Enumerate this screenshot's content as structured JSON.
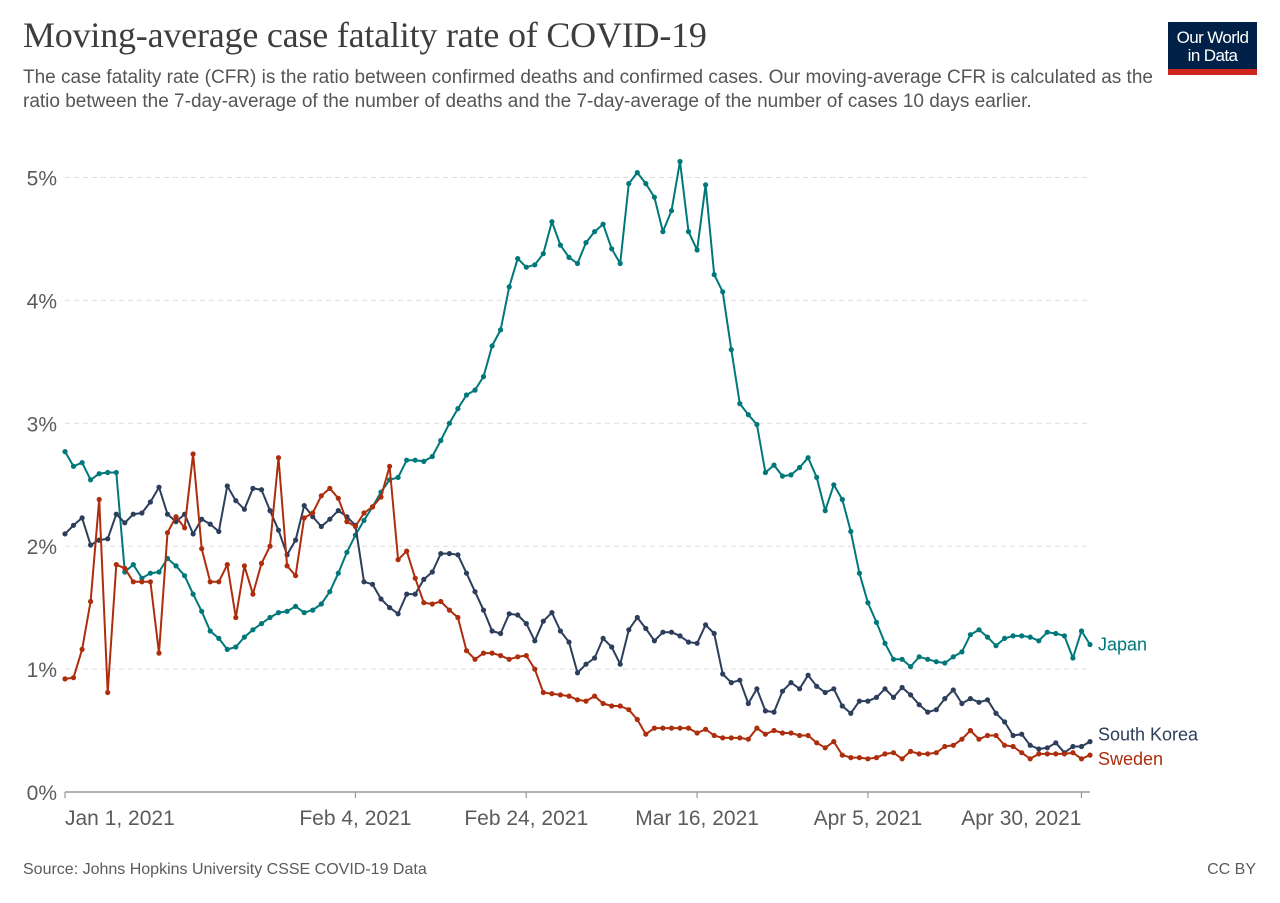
{
  "header": {
    "title": "Moving-average case fatality rate of COVID-19",
    "subtitle": "The case fatality rate (CFR) is the ratio between confirmed deaths and confirmed cases. Our moving-average CFR is calculated as the ratio between the 7-day-average of the number of deaths and the 7-day-average of the number of cases 10 days earlier.",
    "logo_line1": "Our World",
    "logo_line2": "in Data"
  },
  "footer": {
    "source": "Source: Johns Hopkins University CSSE COVID-19 Data",
    "license": "CC BY"
  },
  "colors": {
    "japan": "#00787a",
    "south_korea": "#2c3e5c",
    "sweden": "#ad2e0d",
    "grid": "#dddddd",
    "axis": "#999999",
    "logo_bg": "#002147",
    "logo_accent": "#ce261e"
  },
  "chart_data": {
    "type": "line",
    "title": "Moving-average case fatality rate of COVID-19",
    "xlabel": "",
    "ylabel": "",
    "x_start": "2021-01-01",
    "x_end": "2021-04-30",
    "x_step": "1 day",
    "x_ticks": [
      "Jan 1, 2021",
      "Feb 4, 2021",
      "Feb 24, 2021",
      "Mar 16, 2021",
      "Apr 5, 2021",
      "Apr 30, 2021"
    ],
    "x_tick_days": [
      0,
      34,
      54,
      74,
      94,
      119
    ],
    "y_ticks": [
      "0%",
      "1%",
      "2%",
      "3%",
      "4%",
      "5%"
    ],
    "y_tick_values": [
      0,
      1,
      2,
      3,
      4,
      5
    ],
    "ylim": [
      0,
      5.2
    ],
    "grid": "horizontal dashed",
    "legend": "inline-right",
    "series": [
      {
        "name": "Japan",
        "color_key": "japan",
        "values": [
          2.77,
          2.65,
          2.68,
          2.54,
          2.59,
          2.6,
          2.6,
          1.79,
          1.85,
          1.74,
          1.78,
          1.79,
          1.9,
          1.84,
          1.76,
          1.61,
          1.47,
          1.31,
          1.25,
          1.16,
          1.18,
          1.26,
          1.32,
          1.37,
          1.42,
          1.46,
          1.47,
          1.51,
          1.46,
          1.48,
          1.53,
          1.63,
          1.78,
          1.95,
          2.09,
          2.21,
          2.32,
          2.44,
          2.54,
          2.56,
          2.7,
          2.7,
          2.69,
          2.73,
          2.86,
          3.0,
          3.12,
          3.23,
          3.27,
          3.38,
          3.63,
          3.76,
          4.11,
          4.34,
          4.27,
          4.29,
          4.38,
          4.64,
          4.45,
          4.35,
          4.3,
          4.47,
          4.56,
          4.62,
          4.42,
          4.3,
          4.95,
          5.04,
          4.95,
          4.84,
          4.56,
          4.73,
          5.13,
          4.56,
          4.41,
          4.94,
          4.21,
          4.07,
          3.6,
          3.16,
          3.07,
          2.99,
          2.6,
          2.66,
          2.57,
          2.58,
          2.64,
          2.72,
          2.56,
          2.29,
          2.5,
          2.38,
          2.12,
          1.78,
          1.54,
          1.38,
          1.21,
          1.08,
          1.08,
          1.02,
          1.1,
          1.08,
          1.06,
          1.05,
          1.1,
          1.14,
          1.28,
          1.32,
          1.26,
          1.19,
          1.25,
          1.27,
          1.27,
          1.26,
          1.23,
          1.3,
          1.29,
          1.27,
          1.09,
          1.31,
          1.2
        ]
      },
      {
        "name": "South Korea",
        "color_key": "south_korea",
        "values": [
          2.1,
          2.17,
          2.23,
          2.01,
          2.05,
          2.06,
          2.26,
          2.19,
          2.26,
          2.27,
          2.36,
          2.48,
          2.26,
          2.2,
          2.26,
          2.1,
          2.22,
          2.18,
          2.12,
          2.49,
          2.37,
          2.3,
          2.47,
          2.46,
          2.29,
          2.13,
          1.93,
          2.05,
          2.33,
          2.24,
          2.16,
          2.22,
          2.29,
          2.24,
          2.17,
          1.71,
          1.69,
          1.57,
          1.5,
          1.45,
          1.61,
          1.61,
          1.73,
          1.79,
          1.94,
          1.94,
          1.93,
          1.78,
          1.63,
          1.48,
          1.31,
          1.29,
          1.45,
          1.44,
          1.37,
          1.23,
          1.39,
          1.46,
          1.31,
          1.22,
          0.97,
          1.04,
          1.09,
          1.25,
          1.18,
          1.04,
          1.32,
          1.42,
          1.33,
          1.23,
          1.3,
          1.3,
          1.27,
          1.22,
          1.21,
          1.36,
          1.29,
          0.96,
          0.89,
          0.91,
          0.72,
          0.84,
          0.66,
          0.65,
          0.82,
          0.89,
          0.84,
          0.95,
          0.86,
          0.81,
          0.84,
          0.7,
          0.64,
          0.74,
          0.74,
          0.77,
          0.84,
          0.77,
          0.85,
          0.79,
          0.71,
          0.65,
          0.67,
          0.76,
          0.83,
          0.72,
          0.76,
          0.73,
          0.75,
          0.64,
          0.57,
          0.46,
          0.47,
          0.38,
          0.35,
          0.36,
          0.4,
          0.32,
          0.37,
          0.37,
          0.41
        ]
      },
      {
        "name": "Sweden",
        "color_key": "sweden",
        "values": [
          0.92,
          0.93,
          1.16,
          1.55,
          2.38,
          0.81,
          1.85,
          1.82,
          1.71,
          1.71,
          1.71,
          1.13,
          2.11,
          2.24,
          2.15,
          2.75,
          1.98,
          1.71,
          1.71,
          1.85,
          1.42,
          1.84,
          1.61,
          1.86,
          2.0,
          2.72,
          1.84,
          1.76,
          2.23,
          2.27,
          2.41,
          2.47,
          2.39,
          2.2,
          2.16,
          2.27,
          2.32,
          2.4,
          2.65,
          1.89,
          1.96,
          1.74,
          1.54,
          1.53,
          1.55,
          1.48,
          1.42,
          1.15,
          1.08,
          1.13,
          1.13,
          1.11,
          1.08,
          1.1,
          1.11,
          1.0,
          0.81,
          0.8,
          0.79,
          0.78,
          0.75,
          0.74,
          0.78,
          0.72,
          0.7,
          0.7,
          0.67,
          0.59,
          0.47,
          0.52,
          0.52,
          0.52,
          0.52,
          0.52,
          0.48,
          0.51,
          0.46,
          0.44,
          0.44,
          0.44,
          0.43,
          0.52,
          0.47,
          0.5,
          0.48,
          0.48,
          0.46,
          0.46,
          0.4,
          0.36,
          0.41,
          0.3,
          0.28,
          0.28,
          0.27,
          0.28,
          0.31,
          0.32,
          0.27,
          0.33,
          0.31,
          0.31,
          0.32,
          0.37,
          0.38,
          0.43,
          0.5,
          0.43,
          0.46,
          0.46,
          0.38,
          0.37,
          0.32,
          0.27,
          0.31,
          0.31,
          0.31,
          0.31,
          0.32,
          0.27,
          0.3
        ]
      }
    ]
  }
}
